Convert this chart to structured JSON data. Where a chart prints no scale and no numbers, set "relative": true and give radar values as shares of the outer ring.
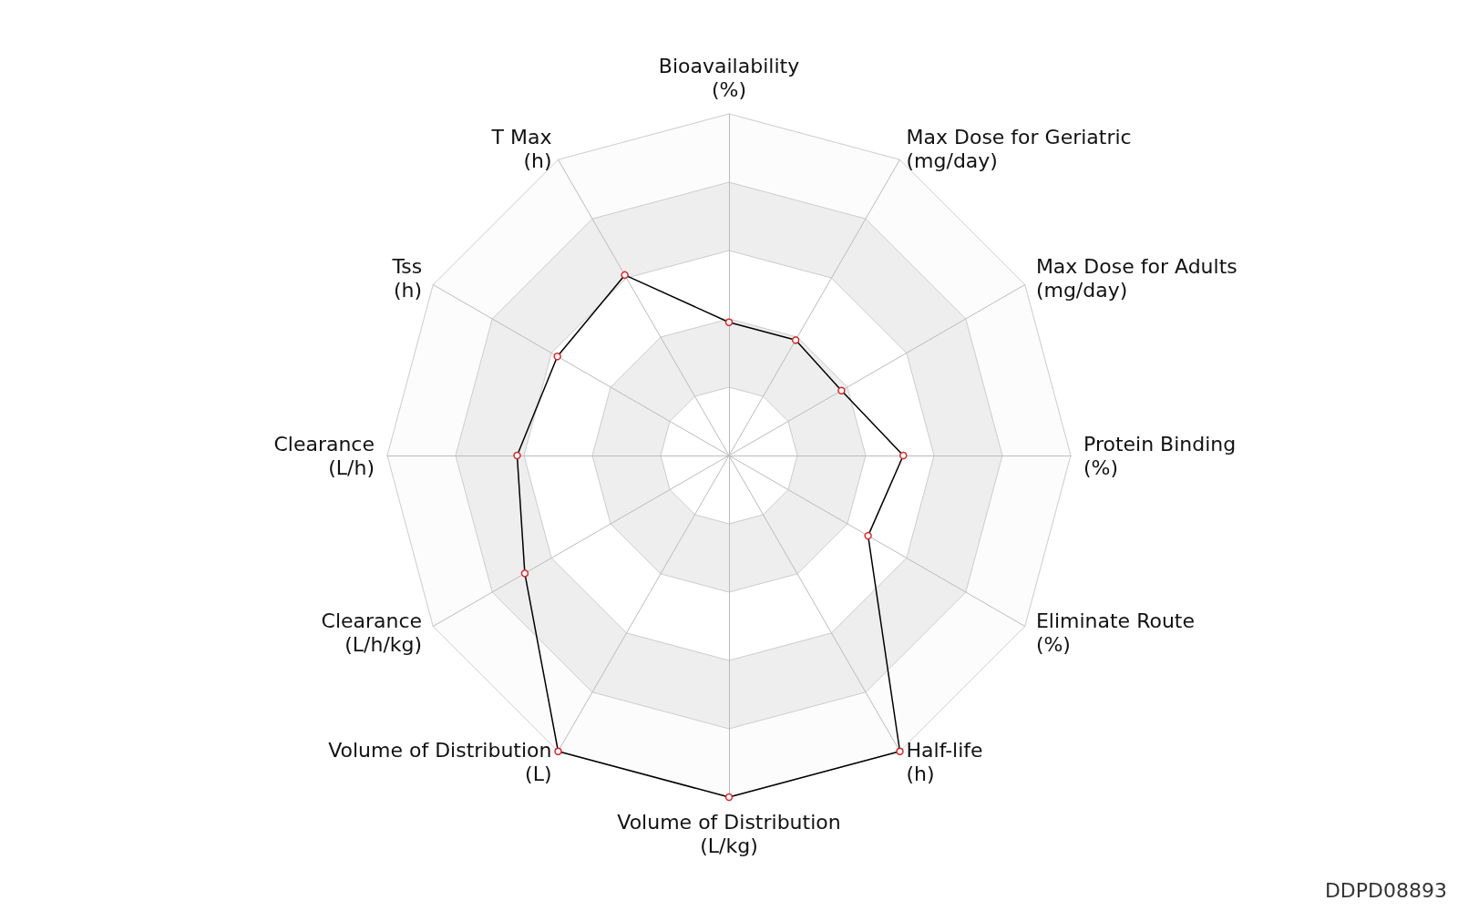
{
  "chart_data": {
    "type": "radar",
    "relative": true,
    "marker": "circle",
    "categories": [
      "Bioavailability\n(%)",
      "Max Dose for Geriatric\n(mg/day)",
      "Max Dose for Adults\n(mg/day)",
      "Protein Binding\n(%)",
      "Eliminate Route\n(%)",
      "Half-life\n(h)",
      "Volume of Distribution\n(L/kg)",
      "Volume of Distribution\n(L)",
      "Clearance\n(L/h/kg)",
      "Clearance\n(L/h)",
      "Tss\n(h)",
      "T Max\n(h)"
    ],
    "series": [
      {
        "color": "#000000",
        "values": [
          0.39,
          0.39,
          0.38,
          0.51,
          0.47,
          1.0,
          1.0,
          1.0,
          0.69,
          0.62,
          0.58,
          0.61
        ]
      }
    ],
    "annotations": [
      "DDPD08893"
    ]
  }
}
